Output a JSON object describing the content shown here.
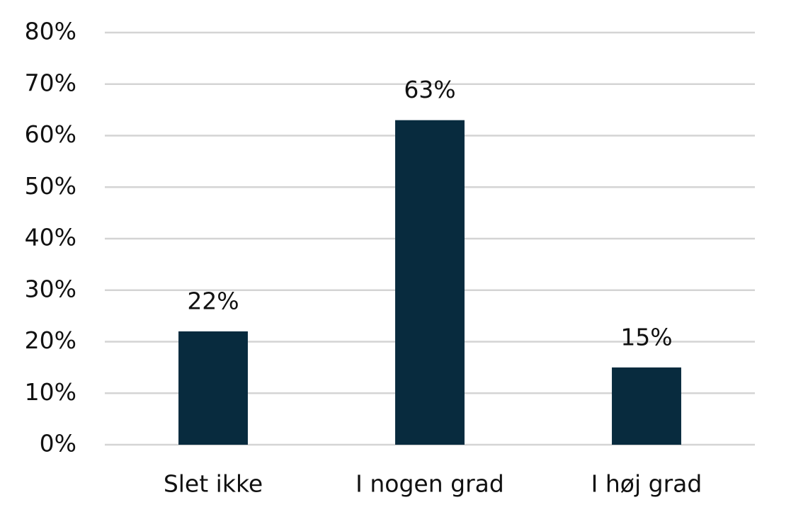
{
  "chart_data": {
    "type": "bar",
    "categories": [
      "Slet ikke",
      "I nogen grad",
      "I høj grad"
    ],
    "values": [
      22,
      63,
      15
    ],
    "value_labels": [
      "22%",
      "63%",
      "15%"
    ],
    "color": "#082b3e",
    "ylim": [
      0,
      80
    ],
    "yticks": [
      {
        "value": 0,
        "label": "0%"
      },
      {
        "value": 10,
        "label": "10%"
      },
      {
        "value": 20,
        "label": "20%"
      },
      {
        "value": 30,
        "label": "30%"
      },
      {
        "value": 40,
        "label": "40%"
      },
      {
        "value": 50,
        "label": "50%"
      },
      {
        "value": 60,
        "label": "60%"
      },
      {
        "value": 70,
        "label": "70%"
      },
      {
        "value": 80,
        "label": "80%"
      }
    ],
    "grid": true
  }
}
